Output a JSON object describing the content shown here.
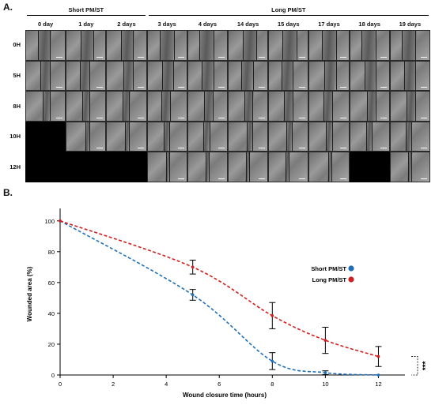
{
  "panel_a": {
    "letter": "A.",
    "group_short": "Short PM/ST",
    "group_long": "Long PM/ST",
    "columns": [
      "0 day",
      "1 day",
      "2 days",
      "3 days",
      "4 days",
      "14 days",
      "15 days",
      "17 days",
      "18 days",
      "19 days"
    ],
    "rows": [
      "0H",
      "5H",
      "8H",
      "10H",
      "12H"
    ],
    "black_cells": [
      [
        3,
        0
      ],
      [
        4,
        0
      ],
      [
        4,
        1
      ],
      [
        4,
        2
      ],
      [
        4,
        8
      ]
    ]
  },
  "panel_b": {
    "letter": "B.",
    "significance": "***"
  },
  "chart_data": {
    "type": "line",
    "xlabel": "Wound closure time (hours)",
    "ylabel": "Wounded area (%)",
    "xlim": [
      0,
      13
    ],
    "ylim": [
      0,
      105
    ],
    "xticks": [
      0,
      2,
      4,
      6,
      8,
      10,
      12
    ],
    "yticks": [
      0,
      20,
      40,
      60,
      80,
      100
    ],
    "legend_position": "right",
    "series": [
      {
        "name": "Short PM/ST",
        "color": "#1f6fb8",
        "x": [
          0,
          5,
          8,
          10,
          12
        ],
        "y": [
          100,
          52,
          9,
          1.5,
          0
        ],
        "err": [
          0,
          3.5,
          5.5,
          1.2,
          0
        ]
      },
      {
        "name": "Long PM/ST",
        "color": "#d11f1f",
        "x": [
          0,
          5,
          8,
          10,
          12
        ],
        "y": [
          100,
          70,
          38.5,
          22.5,
          12
        ],
        "err": [
          0,
          4.5,
          8.5,
          8.5,
          6.5
        ]
      }
    ]
  }
}
